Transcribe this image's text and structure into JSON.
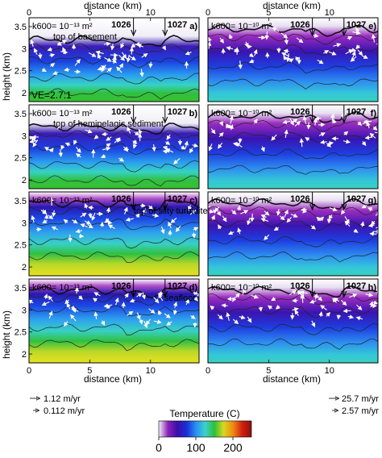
{
  "figure": {
    "top_axis_label": "distance (km)",
    "bottom_axis_label": "distance (km)",
    "y_axis_label": "height (km)",
    "colorbar": {
      "title": "Temperature (C)",
      "ticks": [
        "0",
        "100",
        "200"
      ],
      "range": [
        0,
        250
      ],
      "colors": [
        "#f4f0f8",
        "#8a22b8",
        "#3b0fa8",
        "#1a2fd8",
        "#2a8ef0",
        "#39d2d0",
        "#2fbf3a",
        "#d8d820",
        "#f08a10",
        "#d02010",
        "#8a1010"
      ]
    },
    "legend_left": [
      {
        "label": "1.12 m/yr",
        "arrow": "long-arrow-icon"
      },
      {
        "label": "0.112 m/yr",
        "arrow": "short-arrow-icon"
      }
    ],
    "legend_right": [
      {
        "label": "25.7 m/yr",
        "arrow": "long-arrow-icon"
      },
      {
        "label": "2.57 m/yr",
        "arrow": "short-arrow-icon"
      }
    ]
  },
  "chart_data": [
    {
      "panel": "a)",
      "type": "heatmap",
      "column": "left",
      "permeability": "k600= 10⁻¹³ m²",
      "annotation": "top of basement",
      "extra_label": "VE=2.7:1",
      "site_labels": [
        "1026",
        "1027"
      ],
      "site_x_km": [
        8.6,
        11.2
      ],
      "xlim": [
        0,
        14
      ],
      "ylim": [
        1.8,
        3.7
      ],
      "x_ticks": [
        "0",
        "5",
        "10"
      ],
      "y_ticks": [
        "2",
        "2.5",
        "3",
        "3.5"
      ]
    },
    {
      "panel": "b)",
      "type": "heatmap",
      "column": "left",
      "permeability": "k600= 10⁻¹³ m²",
      "annotation": "top of hemipelagic sediment",
      "site_labels": [
        "1026",
        "1027"
      ],
      "site_x_km": [
        8.6,
        11.2
      ],
      "xlim": [
        0,
        14
      ],
      "ylim": [
        1.8,
        3.7
      ],
      "y_ticks": [
        "2",
        "2.5",
        "3",
        "3.5"
      ]
    },
    {
      "panel": "c)",
      "type": "heatmap",
      "column": "left",
      "permeability": "k600= 10⁻¹³ m²",
      "annotation": "top of silty turbidites",
      "site_labels": [
        "1026",
        "1027"
      ],
      "site_x_km": [
        8.6,
        11.2
      ],
      "xlim": [
        0,
        14
      ],
      "ylim": [
        1.8,
        3.7
      ],
      "y_ticks": [
        "2",
        "2.5",
        "3",
        "3.5"
      ]
    },
    {
      "panel": "d)",
      "type": "heatmap",
      "column": "left",
      "permeability": "k600= 10⁻¹³ m²",
      "annotation": "seafloor",
      "site_labels": [
        "1026",
        "1027"
      ],
      "site_x_km": [
        8.6,
        11.2
      ],
      "xlim": [
        0,
        14
      ],
      "ylim": [
        1.8,
        3.7
      ],
      "x_ticks": [
        "0",
        "5",
        "10"
      ],
      "y_ticks": [
        "2",
        "2.5",
        "3",
        "3.5"
      ]
    },
    {
      "panel": "e)",
      "type": "heatmap",
      "column": "right",
      "permeability": "k600= 10⁻¹⁰ m²",
      "site_labels": [
        "1026",
        "1027"
      ],
      "site_x_km": [
        8.6,
        11.2
      ],
      "xlim": [
        0,
        14
      ],
      "ylim": [
        1.8,
        3.7
      ],
      "x_ticks": [
        "0",
        "5",
        "10"
      ]
    },
    {
      "panel": "f)",
      "type": "heatmap",
      "column": "right",
      "permeability": "k600= 10⁻¹⁰ m²",
      "site_labels": [
        "1026",
        "1027"
      ],
      "site_x_km": [
        8.6,
        11.2
      ],
      "xlim": [
        0,
        14
      ],
      "ylim": [
        1.8,
        3.7
      ]
    },
    {
      "panel": "g)",
      "type": "heatmap",
      "column": "right",
      "permeability": "k600= 10⁻¹⁰ m²",
      "site_labels": [
        "1026",
        "1027"
      ],
      "site_x_km": [
        8.6,
        11.2
      ],
      "xlim": [
        0,
        14
      ],
      "ylim": [
        1.8,
        3.7
      ]
    },
    {
      "panel": "h)",
      "type": "heatmap",
      "column": "right",
      "permeability": "k600= 10⁻¹⁰ m²",
      "site_labels": [
        "1026",
        "1027"
      ],
      "site_x_km": [
        8.6,
        11.2
      ],
      "xlim": [
        0,
        14
      ],
      "ylim": [
        1.8,
        3.7
      ],
      "x_ticks": [
        "0",
        "5",
        "10"
      ]
    }
  ]
}
